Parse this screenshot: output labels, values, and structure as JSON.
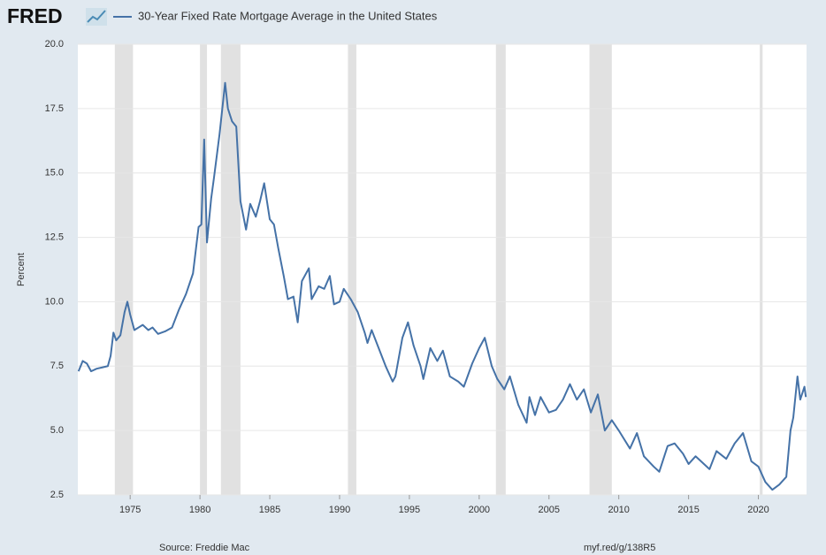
{
  "chart_data": {
    "type": "line",
    "brand": "FRED",
    "ylabel": "Percent",
    "source": "Source: Freddie Mac",
    "link": "myf.red/g/138R5",
    "grid": true,
    "xlim": [
      1971.25,
      2023.45
    ],
    "xticks": [
      1975,
      1980,
      1985,
      1990,
      1995,
      2000,
      2005,
      2010,
      2015,
      2020
    ],
    "ylim": [
      2.5,
      20
    ],
    "yticks": [
      2.5,
      {
        "value": 5,
        "label": "5.0"
      },
      7.5,
      {
        "value": 10,
        "label": "10.0"
      },
      12.5,
      {
        "value": 15,
        "label": "15.0"
      },
      17.5,
      {
        "value": 20,
        "label": "20.0"
      }
    ],
    "recession_color": "#e1e1e1",
    "recessions": [
      [
        1973.9,
        1975.2
      ],
      [
        1980.0,
        1980.5
      ],
      [
        1981.5,
        1982.9
      ],
      [
        1990.6,
        1991.2
      ],
      [
        2001.2,
        2001.9
      ],
      [
        2007.9,
        2009.5
      ],
      [
        2020.1,
        2020.3
      ]
    ],
    "x": [
      1971.3,
      1971.6,
      1971.9,
      1972.2,
      1972.6,
      1973.0,
      1973.4,
      1973.6,
      1973.8,
      1974.0,
      1974.3,
      1974.6,
      1974.8,
      1975.0,
      1975.3,
      1975.6,
      1975.9,
      1976.3,
      1976.6,
      1977.0,
      1977.5,
      1978.0,
      1978.5,
      1979.0,
      1979.5,
      1979.9,
      1980.1,
      1980.3,
      1980.5,
      1980.8,
      1981.0,
      1981.4,
      1981.8,
      1982.0,
      1982.3,
      1982.6,
      1982.9,
      1983.3,
      1983.6,
      1984.0,
      1984.3,
      1984.6,
      1985.0,
      1985.3,
      1985.6,
      1986.0,
      1986.3,
      1986.7,
      1987.0,
      1987.3,
      1987.8,
      1988.0,
      1988.5,
      1988.9,
      1989.3,
      1989.6,
      1990.0,
      1990.3,
      1990.8,
      1991.3,
      1991.8,
      1992.0,
      1992.3,
      1992.8,
      1993.3,
      1993.8,
      1994.0,
      1994.5,
      1994.9,
      1995.3,
      1995.8,
      1996.0,
      1996.5,
      1997.0,
      1997.4,
      1997.9,
      1998.5,
      1998.9,
      1999.5,
      2000.0,
      2000.4,
      2000.9,
      2001.3,
      2001.8,
      2002.2,
      2002.8,
      2003.4,
      2003.6,
      2004.0,
      2004.4,
      2005.0,
      2005.5,
      2006.0,
      2006.5,
      2007.0,
      2007.5,
      2008.0,
      2008.5,
      2009.0,
      2009.5,
      2010.0,
      2010.8,
      2011.3,
      2011.8,
      2012.5,
      2012.9,
      2013.5,
      2014.0,
      2014.6,
      2015.0,
      2015.5,
      2016.5,
      2017.0,
      2017.7,
      2018.3,
      2018.9,
      2019.5,
      2020.0,
      2020.5,
      2021.0,
      2021.5,
      2022.0,
      2022.3,
      2022.5,
      2022.8,
      2023.0,
      2023.3,
      2023.4
    ],
    "series": [
      {
        "name": "30-Year Fixed Rate Mortgage Average in the United States",
        "color": "#4572a7",
        "values": [
          7.3,
          7.7,
          7.6,
          7.3,
          7.4,
          7.45,
          7.5,
          7.9,
          8.8,
          8.5,
          8.7,
          9.6,
          10.0,
          9.5,
          8.9,
          9.0,
          9.1,
          8.9,
          9.0,
          8.75,
          8.85,
          9.0,
          9.7,
          10.3,
          11.1,
          12.9,
          13.0,
          16.3,
          12.3,
          14.0,
          14.8,
          16.5,
          18.5,
          17.5,
          17.0,
          16.8,
          13.9,
          12.8,
          13.8,
          13.3,
          13.9,
          14.6,
          13.2,
          13.0,
          12.1,
          11.0,
          10.1,
          10.2,
          9.2,
          10.8,
          11.3,
          10.1,
          10.6,
          10.5,
          11.0,
          9.9,
          10.0,
          10.5,
          10.1,
          9.6,
          8.8,
          8.4,
          8.9,
          8.2,
          7.5,
          6.9,
          7.1,
          8.6,
          9.2,
          8.3,
          7.5,
          7.0,
          8.2,
          7.7,
          8.1,
          7.1,
          6.9,
          6.7,
          7.6,
          8.2,
          8.6,
          7.5,
          7.0,
          6.6,
          7.1,
          6.0,
          5.3,
          6.3,
          5.6,
          6.3,
          5.7,
          5.8,
          6.2,
          6.8,
          6.2,
          6.6,
          5.7,
          6.4,
          5.0,
          5.4,
          5.0,
          4.3,
          4.9,
          4.0,
          3.6,
          3.4,
          4.4,
          4.5,
          4.1,
          3.7,
          4.0,
          3.5,
          4.2,
          3.9,
          4.5,
          4.9,
          3.8,
          3.6,
          3.0,
          2.7,
          2.9,
          3.2,
          5.0,
          5.5,
          7.1,
          6.2,
          6.7,
          6.3
        ]
      }
    ]
  }
}
